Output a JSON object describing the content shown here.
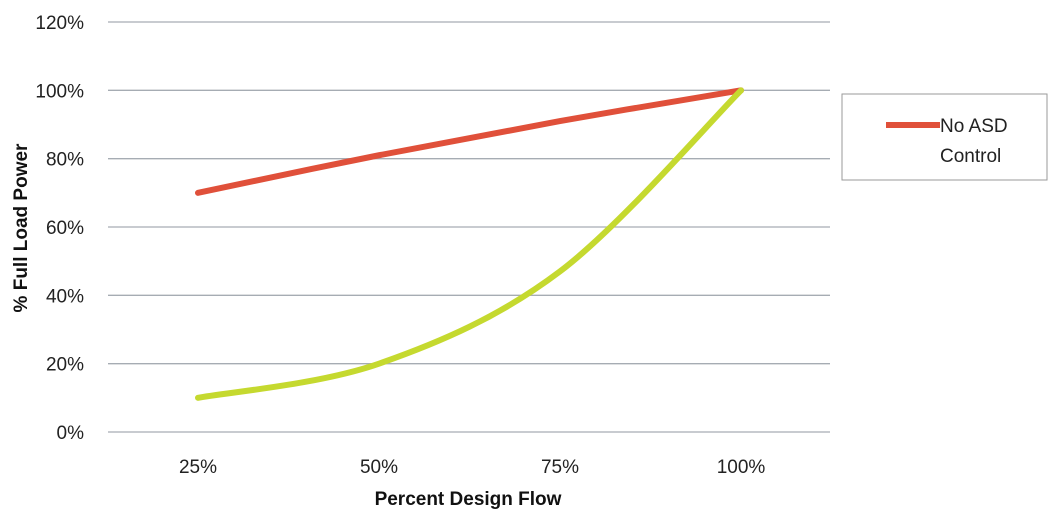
{
  "chart_data": {
    "type": "line",
    "x": [
      "25%",
      "50%",
      "75%",
      "100%"
    ],
    "xlabel": "Percent Design Flow",
    "ylabel": "% Full Load Power",
    "ylim": [
      0,
      120
    ],
    "yticks": [
      "0%",
      "20%",
      "40%",
      "60%",
      "80%",
      "100%",
      "120%"
    ],
    "grid": "horizontal",
    "legend_position": "right",
    "series": [
      {
        "name": "No ASD Control",
        "color": "#e0503a",
        "values": [
          70,
          81,
          91,
          100
        ]
      },
      {
        "name": "",
        "color": "#c5d92f",
        "values": [
          10,
          20,
          47,
          100
        ]
      }
    ]
  }
}
